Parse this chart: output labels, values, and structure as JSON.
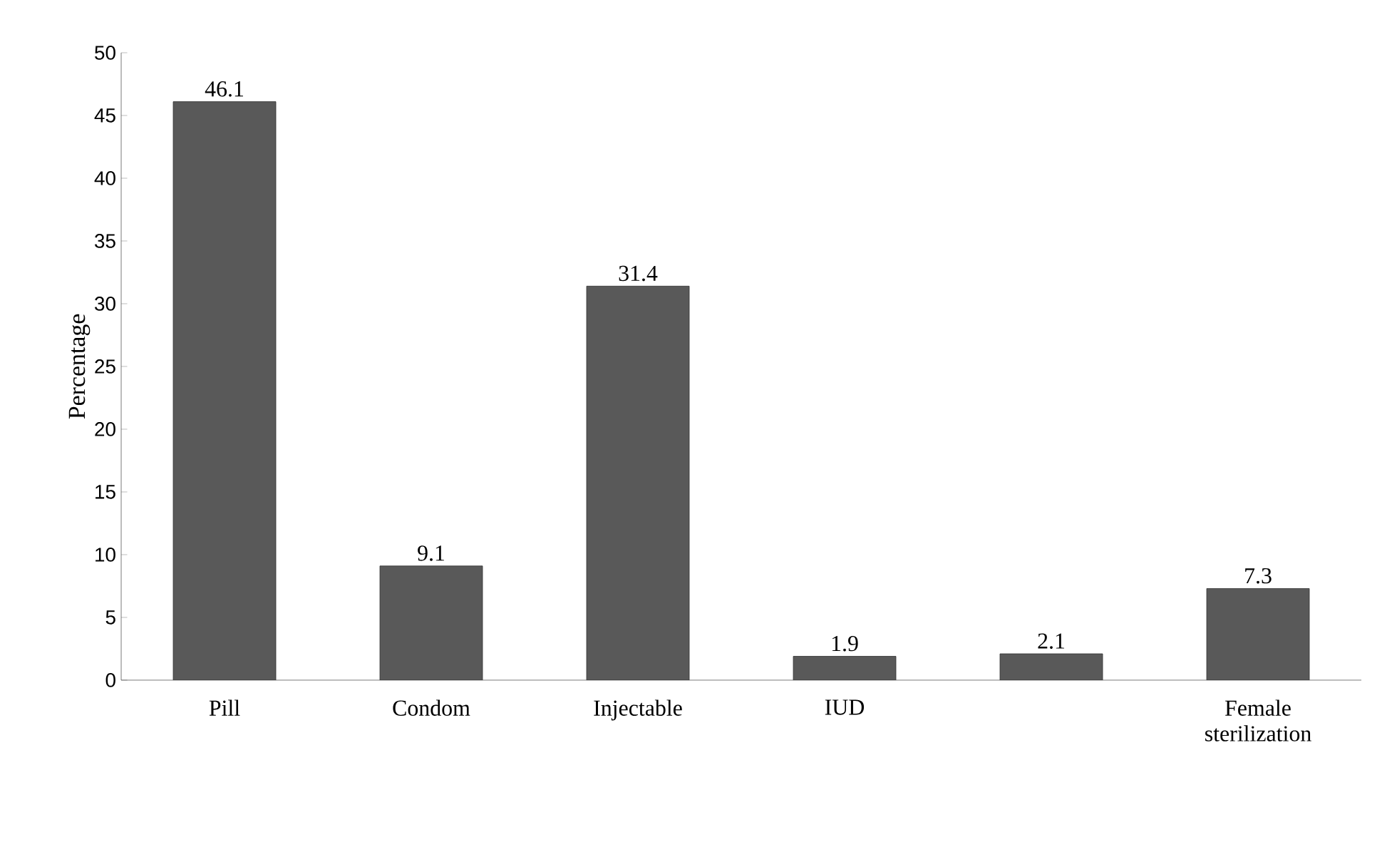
{
  "chart_data": {
    "type": "bar",
    "ylabel": "Percentage",
    "categories": [
      "Pill",
      "Condom",
      "Injectable",
      "IUD",
      null,
      "Female sterilization"
    ],
    "values": [
      46.1,
      9.1,
      31.4,
      1.9,
      2.1,
      7.3
    ],
    "color": "#595959",
    "ylim": [
      0,
      50
    ],
    "yticks": [
      0,
      5,
      10,
      15,
      20,
      25,
      30,
      35,
      40,
      45,
      50
    ],
    "data_labels": true
  }
}
